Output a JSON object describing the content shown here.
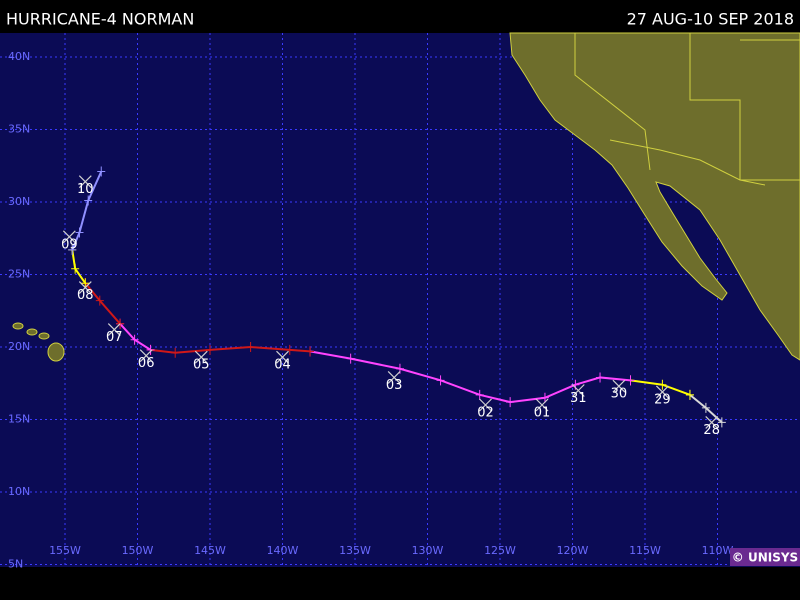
{
  "header": {
    "title": "HURRICANE-4 NORMAN",
    "dates": "27 AUG-10 SEP 2018"
  },
  "map": {
    "lon_lines": [
      {
        "value": 155,
        "label": "155W"
      },
      {
        "value": 150,
        "label": "150W"
      },
      {
        "value": 145,
        "label": "145W"
      },
      {
        "value": 140,
        "label": "140W"
      },
      {
        "value": 135,
        "label": "135W"
      },
      {
        "value": 130,
        "label": "130W"
      },
      {
        "value": 125,
        "label": "125W"
      },
      {
        "value": 120,
        "label": "120W"
      },
      {
        "value": 115,
        "label": "115W"
      },
      {
        "value": 110,
        "label": "110W"
      }
    ],
    "lat_lines": [
      {
        "value": 40,
        "label": "40N"
      },
      {
        "value": 35,
        "label": "35N"
      },
      {
        "value": 30,
        "label": "30N"
      },
      {
        "value": 25,
        "label": "25N"
      },
      {
        "value": 20,
        "label": "20N"
      },
      {
        "value": 15,
        "label": "15N"
      },
      {
        "value": 10,
        "label": "10N"
      },
      {
        "value": 5,
        "label": "5N"
      }
    ],
    "track": [
      {
        "color": "#d8d8d8",
        "points": [
          [
            109.7,
            14.8
          ],
          [
            110.8,
            15.8
          ],
          [
            111.9,
            16.7
          ]
        ]
      },
      {
        "color": "#ffff00",
        "points": [
          [
            111.9,
            16.7
          ],
          [
            113.8,
            17.4
          ],
          [
            116.0,
            17.7
          ]
        ]
      },
      {
        "color": "#ff44ff",
        "points": [
          [
            116.0,
            17.7
          ],
          [
            118.1,
            17.9
          ],
          [
            119.8,
            17.4
          ],
          [
            121.9,
            16.5
          ],
          [
            124.3,
            16.2
          ],
          [
            126.4,
            16.7
          ],
          [
            129.1,
            17.7
          ],
          [
            131.9,
            18.5
          ],
          [
            135.3,
            19.2
          ],
          [
            138.1,
            19.7
          ]
        ]
      },
      {
        "color": "#d01818",
        "points": [
          [
            138.1,
            19.7
          ],
          [
            139.5,
            19.8
          ],
          [
            142.2,
            20.0
          ],
          [
            145.0,
            19.8
          ],
          [
            147.4,
            19.6
          ],
          [
            149.1,
            19.8
          ]
        ]
      },
      {
        "color": "#ff44ff",
        "points": [
          [
            149.1,
            19.8
          ],
          [
            150.2,
            20.5
          ],
          [
            151.2,
            21.6
          ]
        ]
      },
      {
        "color": "#d01818",
        "points": [
          [
            151.2,
            21.6
          ],
          [
            152.6,
            23.2
          ],
          [
            153.6,
            24.4
          ]
        ]
      },
      {
        "color": "#ffff00",
        "points": [
          [
            153.6,
            24.4
          ],
          [
            154.3,
            25.4
          ],
          [
            154.5,
            26.7
          ]
        ]
      },
      {
        "color": "#9090ff",
        "points": [
          [
            154.5,
            26.7
          ],
          [
            154.0,
            27.9
          ],
          [
            153.4,
            30.1
          ],
          [
            152.5,
            32.1
          ]
        ]
      }
    ],
    "day_labels": [
      {
        "label": "28",
        "lon": 110.4,
        "lat": 14.8
      },
      {
        "label": "29",
        "lon": 113.8,
        "lat": 16.9
      },
      {
        "label": "30",
        "lon": 116.8,
        "lat": 17.3
      },
      {
        "label": "31",
        "lon": 119.6,
        "lat": 17.0
      },
      {
        "label": "01",
        "lon": 122.1,
        "lat": 16.0
      },
      {
        "label": "02",
        "lon": 126.0,
        "lat": 16.0
      },
      {
        "label": "03",
        "lon": 132.3,
        "lat": 17.9
      },
      {
        "label": "04",
        "lon": 140.0,
        "lat": 19.3
      },
      {
        "label": "05",
        "lon": 145.6,
        "lat": 19.3
      },
      {
        "label": "06",
        "lon": 149.4,
        "lat": 19.4
      },
      {
        "label": "07",
        "lon": 151.6,
        "lat": 21.2
      },
      {
        "label": "08",
        "lon": 153.6,
        "lat": 24.1
      },
      {
        "label": "09",
        "lon": 154.7,
        "lat": 27.6
      },
      {
        "label": "10",
        "lon": 153.6,
        "lat": 31.4
      }
    ]
  },
  "credit": "© UNISYS"
}
